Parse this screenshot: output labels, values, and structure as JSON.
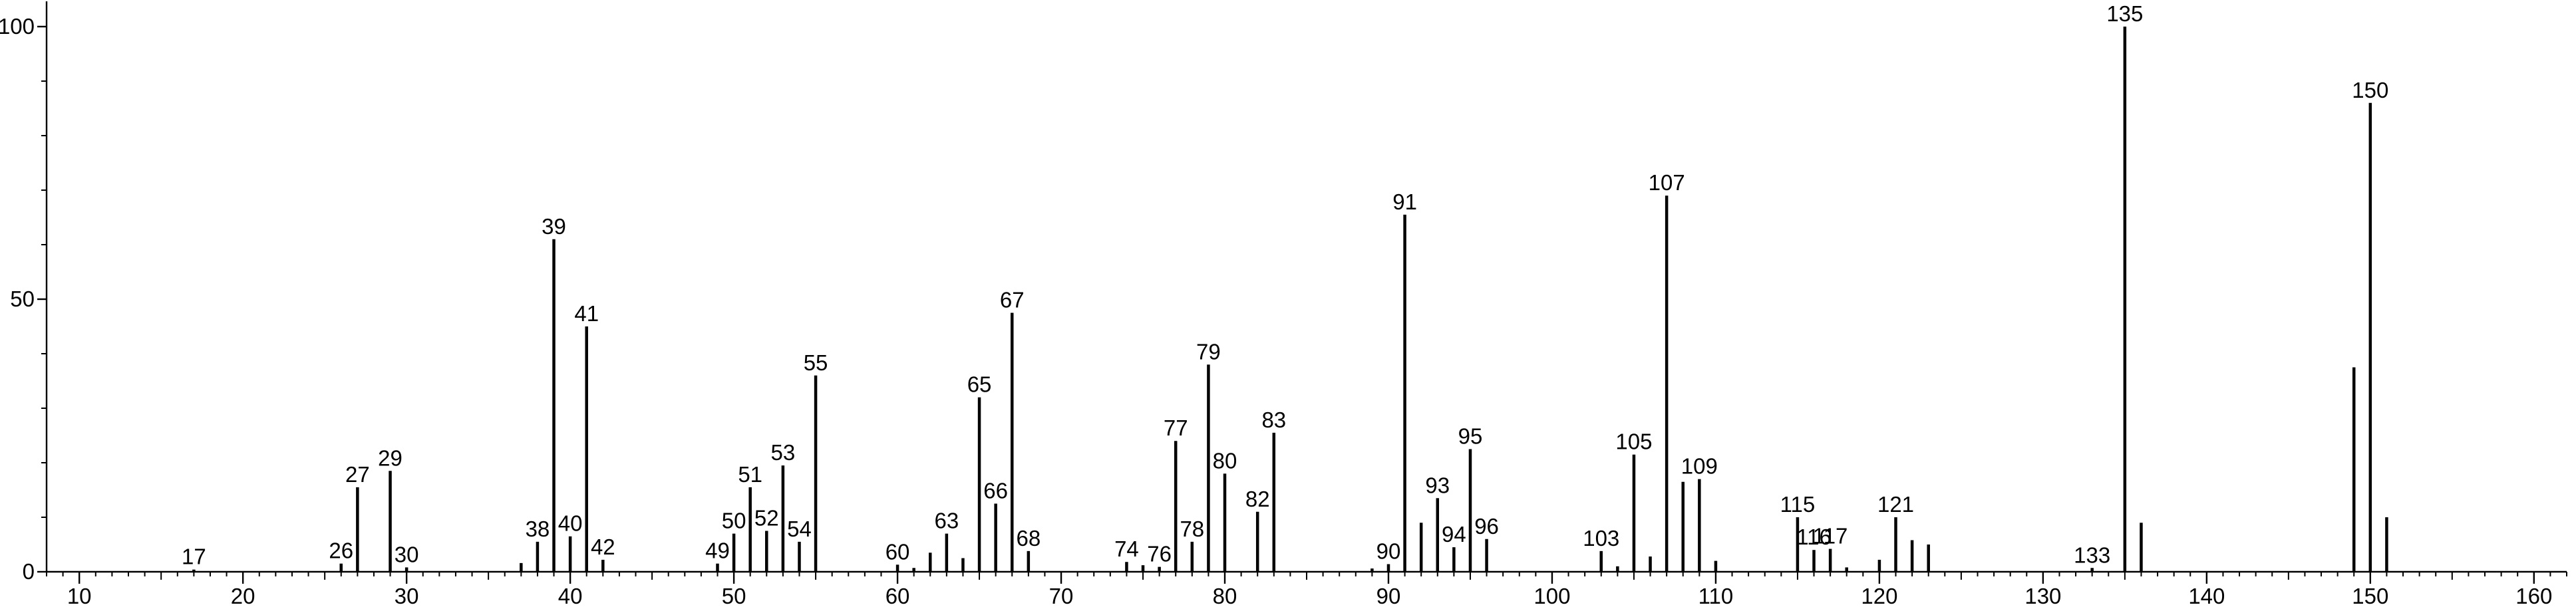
{
  "chart_data": {
    "type": "bar",
    "title": "",
    "xlabel": "",
    "ylabel": "",
    "xlim": [
      8,
      162
    ],
    "ylim": [
      0,
      100
    ],
    "x_ticks": [
      10,
      20,
      30,
      40,
      50,
      60,
      70,
      80,
      90,
      100,
      110,
      120,
      130,
      140,
      150,
      160
    ],
    "y_ticks": [
      0,
      50,
      100
    ],
    "grid": false,
    "peaks": [
      {
        "mz": 17,
        "intensity": 0.4,
        "label": "17"
      },
      {
        "mz": 26,
        "intensity": 1.5,
        "label": "26"
      },
      {
        "mz": 27,
        "intensity": 15.5,
        "label": "27"
      },
      {
        "mz": 29,
        "intensity": 18.5,
        "label": "29"
      },
      {
        "mz": 30,
        "intensity": 0.8,
        "label": "30"
      },
      {
        "mz": 37,
        "intensity": 1.6,
        "label": ""
      },
      {
        "mz": 38,
        "intensity": 5.5,
        "label": "38"
      },
      {
        "mz": 39,
        "intensity": 61,
        "label": "39"
      },
      {
        "mz": 40,
        "intensity": 6.5,
        "label": "40"
      },
      {
        "mz": 41,
        "intensity": 45,
        "label": "41"
      },
      {
        "mz": 42,
        "intensity": 2.2,
        "label": "42"
      },
      {
        "mz": 49,
        "intensity": 1.5,
        "label": "49"
      },
      {
        "mz": 50,
        "intensity": 7,
        "label": "50"
      },
      {
        "mz": 51,
        "intensity": 15.5,
        "label": "51"
      },
      {
        "mz": 52,
        "intensity": 7.5,
        "label": "52"
      },
      {
        "mz": 53,
        "intensity": 19.5,
        "label": "53"
      },
      {
        "mz": 54,
        "intensity": 5.5,
        "label": "54"
      },
      {
        "mz": 55,
        "intensity": 36,
        "label": "55"
      },
      {
        "mz": 60,
        "intensity": 1.3,
        "label": "60"
      },
      {
        "mz": 61,
        "intensity": 0.7,
        "label": ""
      },
      {
        "mz": 62,
        "intensity": 3.5,
        "label": ""
      },
      {
        "mz": 63,
        "intensity": 7,
        "label": "63"
      },
      {
        "mz": 64,
        "intensity": 2.5,
        "label": ""
      },
      {
        "mz": 65,
        "intensity": 32,
        "label": "65"
      },
      {
        "mz": 66,
        "intensity": 12.5,
        "label": "66"
      },
      {
        "mz": 67,
        "intensity": 47.5,
        "label": "67"
      },
      {
        "mz": 68,
        "intensity": 3.8,
        "label": "68"
      },
      {
        "mz": 74,
        "intensity": 1.8,
        "label": "74"
      },
      {
        "mz": 75,
        "intensity": 1.2,
        "label": ""
      },
      {
        "mz": 76,
        "intensity": 0.9,
        "label": "76"
      },
      {
        "mz": 77,
        "intensity": 24,
        "label": "77"
      },
      {
        "mz": 78,
        "intensity": 5.5,
        "label": "78"
      },
      {
        "mz": 79,
        "intensity": 38,
        "label": "79"
      },
      {
        "mz": 80,
        "intensity": 18,
        "label": "80"
      },
      {
        "mz": 82,
        "intensity": 11,
        "label": "82"
      },
      {
        "mz": 83,
        "intensity": 25.5,
        "label": "83"
      },
      {
        "mz": 89,
        "intensity": 0.6,
        "label": ""
      },
      {
        "mz": 90,
        "intensity": 1.4,
        "label": "90"
      },
      {
        "mz": 91,
        "intensity": 65.5,
        "label": "91"
      },
      {
        "mz": 92,
        "intensity": 9,
        "label": ""
      },
      {
        "mz": 93,
        "intensity": 13.5,
        "label": "93"
      },
      {
        "mz": 94,
        "intensity": 4.5,
        "label": "94"
      },
      {
        "mz": 95,
        "intensity": 22.5,
        "label": "95"
      },
      {
        "mz": 96,
        "intensity": 6,
        "label": "96"
      },
      {
        "mz": 103,
        "intensity": 3.8,
        "label": "103"
      },
      {
        "mz": 104,
        "intensity": 1,
        "label": ""
      },
      {
        "mz": 105,
        "intensity": 21.5,
        "label": "105"
      },
      {
        "mz": 106,
        "intensity": 2.8,
        "label": ""
      },
      {
        "mz": 107,
        "intensity": 69,
        "label": "107"
      },
      {
        "mz": 108,
        "intensity": 16.5,
        "label": ""
      },
      {
        "mz": 109,
        "intensity": 17,
        "label": "109"
      },
      {
        "mz": 110,
        "intensity": 2,
        "label": ""
      },
      {
        "mz": 115,
        "intensity": 10,
        "label": "115"
      },
      {
        "mz": 116,
        "intensity": 4,
        "label": "116"
      },
      {
        "mz": 117,
        "intensity": 4.2,
        "label": "117"
      },
      {
        "mz": 118,
        "intensity": 0.8,
        "label": ""
      },
      {
        "mz": 120,
        "intensity": 2.2,
        "label": ""
      },
      {
        "mz": 121,
        "intensity": 10,
        "label": "121"
      },
      {
        "mz": 122,
        "intensity": 5.8,
        "label": ""
      },
      {
        "mz": 123,
        "intensity": 5,
        "label": ""
      },
      {
        "mz": 133,
        "intensity": 0.7,
        "label": "133"
      },
      {
        "mz": 135,
        "intensity": 100,
        "label": "135"
      },
      {
        "mz": 136,
        "intensity": 9,
        "label": ""
      },
      {
        "mz": 149,
        "intensity": 37.5,
        "label": ""
      },
      {
        "mz": 150,
        "intensity": 86,
        "label": "150"
      },
      {
        "mz": 151,
        "intensity": 10,
        "label": ""
      }
    ]
  }
}
